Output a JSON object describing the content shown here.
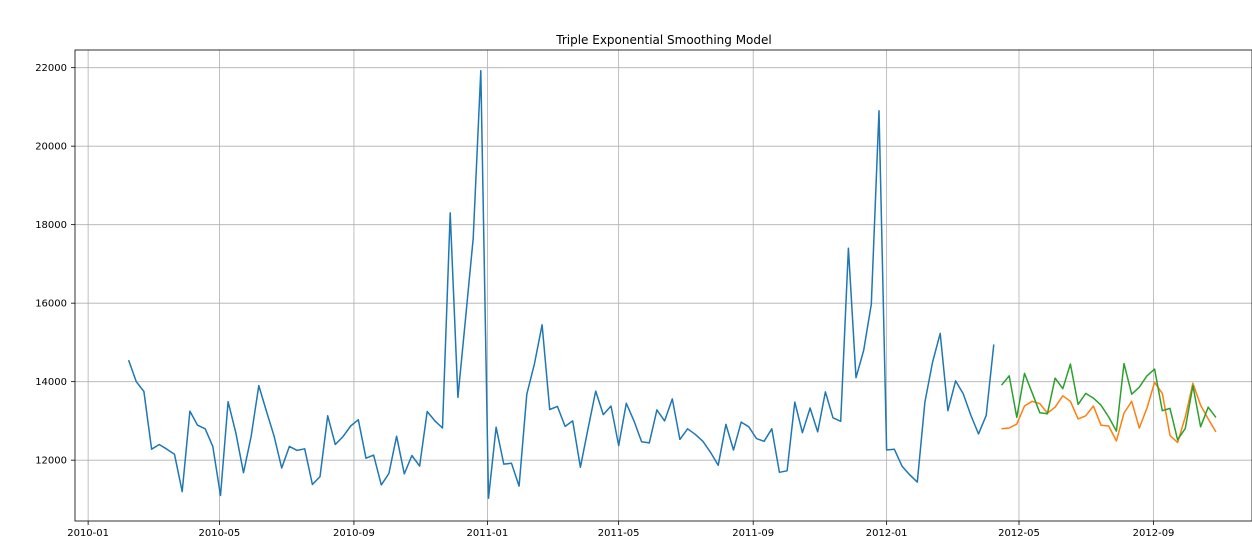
{
  "chart_data": {
    "type": "line",
    "title": "Triple Exponential Smoothing Model",
    "xlabel": "",
    "ylabel": "",
    "grid": true,
    "xlim": [
      "2009-12-20",
      "2012-11-30"
    ],
    "ylim": [
      10450,
      22450
    ],
    "xticks": [
      "2010-01",
      "2010-05",
      "2010-09",
      "2011-01",
      "2011-05",
      "2011-09",
      "2012-01",
      "2012-05",
      "2012-09"
    ],
    "yticks": [
      12000,
      14000,
      16000,
      18000,
      20000,
      22000
    ],
    "series": [
      {
        "color": "#1f77b4",
        "x": [
          "2010-02-07",
          "2010-02-14",
          "2010-02-21",
          "2010-02-28",
          "2010-03-07",
          "2010-03-14",
          "2010-03-21",
          "2010-03-28",
          "2010-04-04",
          "2010-04-11",
          "2010-04-18",
          "2010-04-25",
          "2010-05-02",
          "2010-05-09",
          "2010-05-16",
          "2010-05-23",
          "2010-05-30",
          "2010-06-06",
          "2010-06-13",
          "2010-06-20",
          "2010-06-27",
          "2010-07-04",
          "2010-07-11",
          "2010-07-18",
          "2010-07-25",
          "2010-08-01",
          "2010-08-08",
          "2010-08-15",
          "2010-08-22",
          "2010-08-29",
          "2010-09-05",
          "2010-09-12",
          "2010-09-19",
          "2010-09-26",
          "2010-10-03",
          "2010-10-10",
          "2010-10-17",
          "2010-10-24",
          "2010-10-31",
          "2010-11-07",
          "2010-11-14",
          "2010-11-21",
          "2010-11-28",
          "2010-12-05",
          "2010-12-12",
          "2010-12-19",
          "2010-12-26",
          "2011-01-02",
          "2011-01-09",
          "2011-01-16",
          "2011-01-23",
          "2011-01-30",
          "2011-02-06",
          "2011-02-13",
          "2011-02-20",
          "2011-02-27",
          "2011-03-06",
          "2011-03-13",
          "2011-03-20",
          "2011-03-27",
          "2011-04-03",
          "2011-04-10",
          "2011-04-17",
          "2011-04-24",
          "2011-05-01",
          "2011-05-08",
          "2011-05-15",
          "2011-05-22",
          "2011-05-29",
          "2011-06-05",
          "2011-06-12",
          "2011-06-19",
          "2011-06-26",
          "2011-07-03",
          "2011-07-10",
          "2011-07-17",
          "2011-07-24",
          "2011-07-31",
          "2011-08-07",
          "2011-08-14",
          "2011-08-21",
          "2011-08-28",
          "2011-09-04",
          "2011-09-11",
          "2011-09-18",
          "2011-09-25",
          "2011-10-02",
          "2011-10-09",
          "2011-10-16",
          "2011-10-23",
          "2011-10-30",
          "2011-11-06",
          "2011-11-13",
          "2011-11-20",
          "2011-11-27",
          "2011-12-04",
          "2011-12-11",
          "2011-12-18",
          "2011-12-25",
          "2012-01-01",
          "2012-01-08",
          "2012-01-15",
          "2012-01-22",
          "2012-01-29",
          "2012-02-05",
          "2012-02-12",
          "2012-02-19",
          "2012-02-26",
          "2012-03-04",
          "2012-03-11",
          "2012-03-18",
          "2012-03-25",
          "2012-04-01",
          "2012-04-08"
        ],
        "y": [
          14550,
          14000,
          13750,
          12280,
          12400,
          12280,
          12150,
          11200,
          13250,
          12890,
          12800,
          12350,
          11100,
          13490,
          12700,
          11680,
          12600,
          13900,
          13250,
          12610,
          11800,
          12350,
          12250,
          12290,
          11380,
          11580,
          13130,
          12400,
          12600,
          12870,
          13030,
          12050,
          12130,
          11370,
          11660,
          12610,
          11650,
          12120,
          11850,
          13240,
          13000,
          12820,
          18300,
          13600,
          15600,
          17650,
          21920,
          11030,
          12840,
          11900,
          11920,
          11340,
          13680,
          14450,
          15450,
          13290,
          13370,
          12860,
          13000,
          11820,
          12800,
          13760,
          13160,
          13380,
          12370,
          13450,
          13000,
          12470,
          12440,
          13280,
          13000,
          13560,
          12530,
          12800,
          12660,
          12480,
          12200,
          11870,
          12910,
          12260,
          12970,
          12850,
          12550,
          12480,
          12800,
          11690,
          11730,
          13480,
          12700,
          13330,
          12720,
          13740,
          13080,
          12990,
          17400,
          14100,
          14800,
          15970,
          20900,
          12260,
          12280,
          11850,
          11630,
          11440,
          13480,
          14500,
          15230,
          13260,
          14020,
          13690,
          13140,
          12670,
          13140,
          14950
        ]
      },
      {
        "color": "#ff7f0e",
        "x": [
          "2012-04-15",
          "2012-04-22",
          "2012-04-29",
          "2012-05-06",
          "2012-05-13",
          "2012-05-20",
          "2012-05-27",
          "2012-06-03",
          "2012-06-10",
          "2012-06-17",
          "2012-06-24",
          "2012-07-01",
          "2012-07-08",
          "2012-07-15",
          "2012-07-22",
          "2012-07-29",
          "2012-08-05",
          "2012-08-12",
          "2012-08-19",
          "2012-08-26",
          "2012-09-02",
          "2012-09-09",
          "2012-09-16",
          "2012-09-23",
          "2012-09-30",
          "2012-10-07",
          "2012-10-14",
          "2012-10-21",
          "2012-10-28"
        ],
        "y": [
          12800,
          12820,
          12920,
          13380,
          13500,
          13440,
          13200,
          13350,
          13640,
          13500,
          13050,
          13130,
          13380,
          12890,
          12870,
          12490,
          13200,
          13500,
          12820,
          13330,
          13980,
          13700,
          12630,
          12450,
          13100,
          13960,
          13400,
          13050,
          12720
        ]
      },
      {
        "color": "#2ca02c",
        "x": [
          "2012-04-15",
          "2012-04-22",
          "2012-04-29",
          "2012-05-06",
          "2012-05-13",
          "2012-05-20",
          "2012-05-27",
          "2012-06-03",
          "2012-06-10",
          "2012-06-17",
          "2012-06-24",
          "2012-07-01",
          "2012-07-08",
          "2012-07-15",
          "2012-07-22",
          "2012-07-29",
          "2012-08-05",
          "2012-08-12",
          "2012-08-19",
          "2012-08-26",
          "2012-09-02",
          "2012-09-09",
          "2012-09-16",
          "2012-09-23",
          "2012-09-30",
          "2012-10-07",
          "2012-10-14",
          "2012-10-21",
          "2012-10-28"
        ],
        "y": [
          13910,
          14150,
          13090,
          14210,
          13720,
          13210,
          13180,
          14090,
          13820,
          14450,
          13420,
          13700,
          13580,
          13400,
          13100,
          12740,
          14460,
          13680,
          13860,
          14150,
          14320,
          13260,
          13320,
          12520,
          12810,
          13900,
          12850,
          13350,
          13090
        ]
      }
    ]
  }
}
